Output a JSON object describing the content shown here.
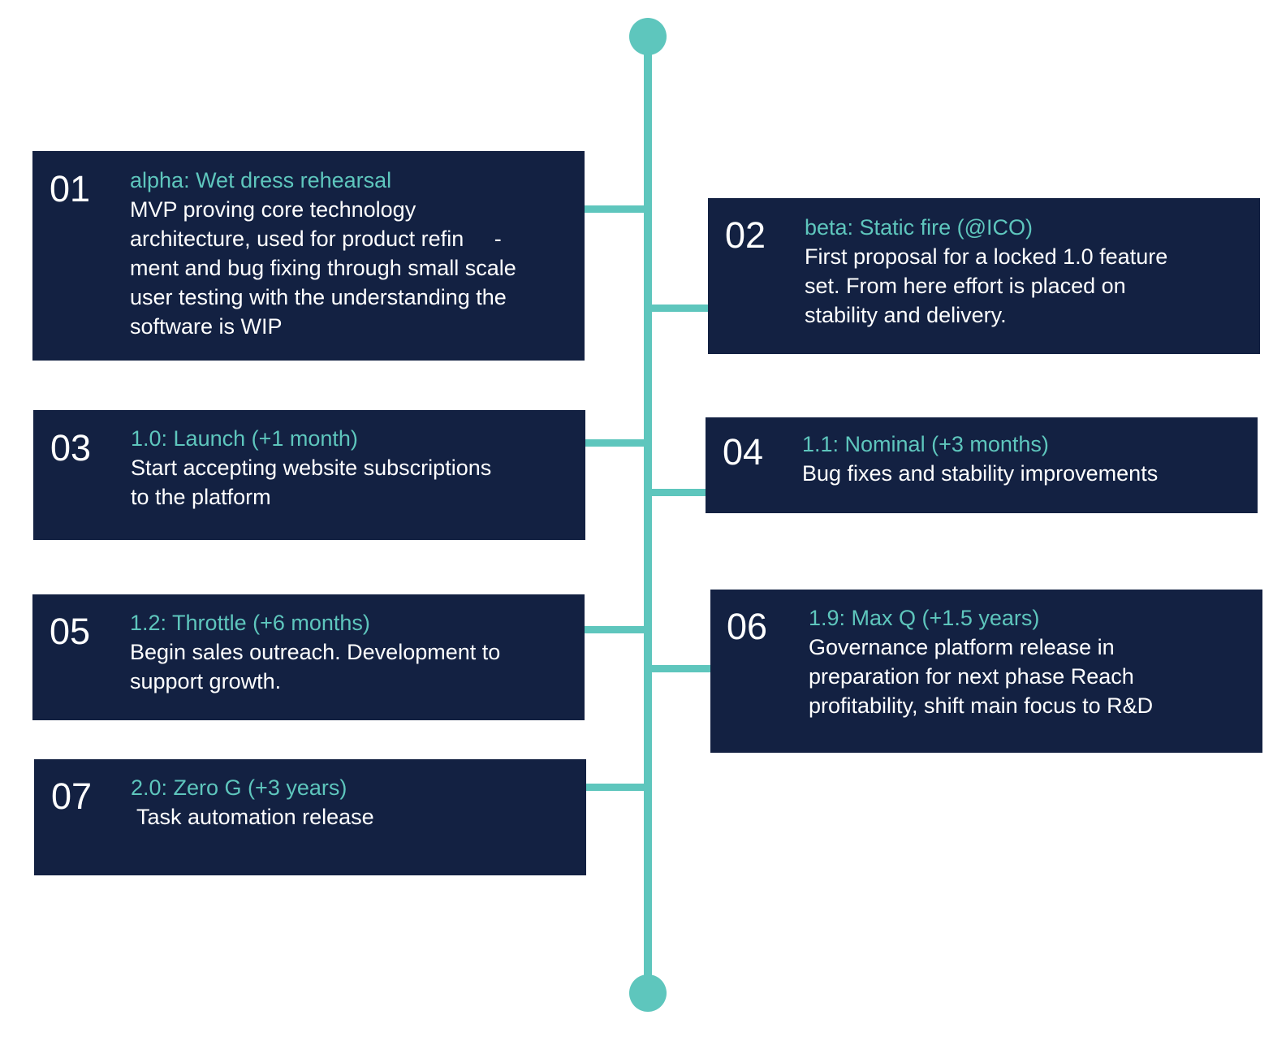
{
  "milestones": [
    {
      "number": "01",
      "title": "alpha: Wet dress rehearsal",
      "lines": [
        "MVP proving core technology",
        "architecture, used for product refin     -",
        "ment and bug fixing through small scale",
        "user testing with the understanding the",
        "software is WIP"
      ]
    },
    {
      "number": "02",
      "title": "beta: Static fire (@ICO)",
      "lines": [
        "First proposal for a locked 1.0 feature",
        "set. From here effort is placed on",
        "stability and delivery."
      ]
    },
    {
      "number": "03",
      "title": "1.0: Launch (+1 month)",
      "lines": [
        "Start accepting website subscriptions",
        "to the platform"
      ]
    },
    {
      "number": "04",
      "title": "1.1: Nominal (+3 months)",
      "lines": [
        "Bug fixes and stability improvements"
      ]
    },
    {
      "number": "05",
      "title": "1.2: Throttle (+6 months)",
      "lines": [
        "Begin sales outreach. Development to",
        "support growth."
      ]
    },
    {
      "number": "06",
      "title": "1.9: Max Q (+1.5 years)",
      "lines": [
        "Governance platform release in",
        "preparation for next phase Reach",
        "profitability, shift main focus to R&D"
      ]
    },
    {
      "number": "07",
      "title": "2.0: Zero G (+3 years)",
      "lines": [
        " Task automation release"
      ]
    }
  ],
  "colors": {
    "card_background": "#132142",
    "accent": "#5ec6bd",
    "text": "#ffffff"
  }
}
